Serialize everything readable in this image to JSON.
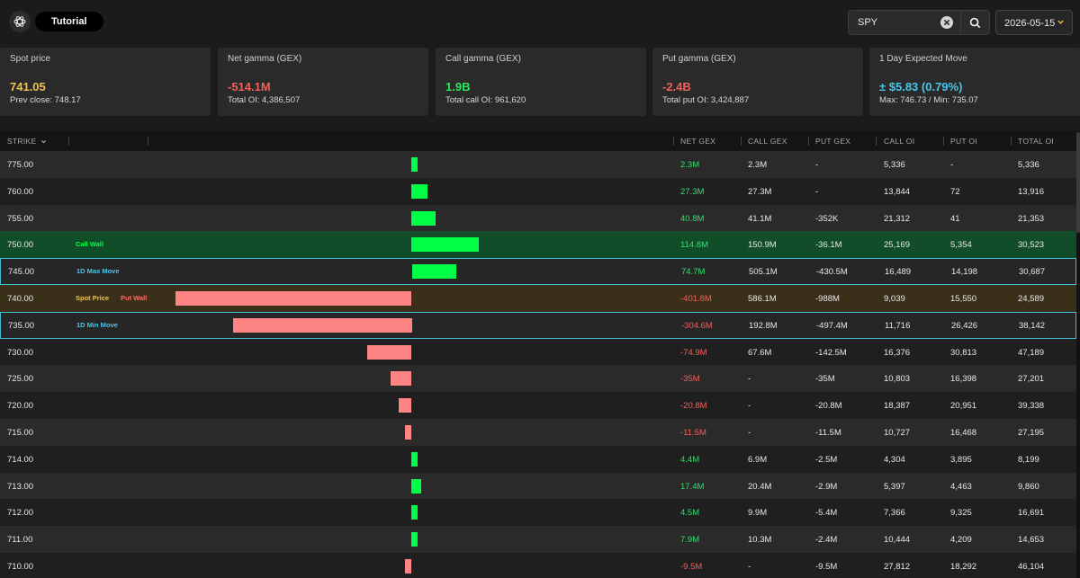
{
  "header": {
    "logo_icon": "openai-knot-icon",
    "tutorial_label": "Tutorial",
    "search": {
      "value": "SPY",
      "clear_icon": "close-circle-icon",
      "button_icon": "search-icon"
    },
    "date": {
      "value": "2026-05-15",
      "icon": "chevron-down-icon"
    }
  },
  "cards": [
    {
      "label": "Spot price",
      "value": "741.05",
      "sub": "Prev close: 748.17",
      "color": "#f2c14e"
    },
    {
      "label": "Net gamma (GEX)",
      "value": "-514.1M",
      "sub": "Total OI: 4,386,507",
      "color": "#f0605f"
    },
    {
      "label": "Call gamma (GEX)",
      "value": "1.9B",
      "sub": "Total call OI: 961,620",
      "color": "#2ce85a"
    },
    {
      "label": "Put gamma (GEX)",
      "value": "-2.4B",
      "sub": "Total put OI: 3,424,887",
      "color": "#f0605f"
    },
    {
      "label": "1 Day Expected Move",
      "value": "± $5.83 (0.79%)",
      "sub": "Max: 746.73 / Min: 735.07",
      "color": "#47c6ee"
    }
  ],
  "table": {
    "columns": {
      "strike": "STRIKE",
      "net_gex": "NET GEX",
      "call_gex": "CALL GEX",
      "put_gex": "PUT GEX",
      "call_oi": "CALL OI",
      "put_oi": "PUT OI",
      "total_oi": "TOTAL OI"
    },
    "sort_icon": "chevron-down-icon",
    "colors": {
      "positive": "#00ff46",
      "negative": "#ff8585",
      "positive_text": "#2fe06b",
      "negative_text": "#f0605f",
      "call_wall_row": "#124d2a",
      "put_wall_row": "#3a301a",
      "move_border": "#3fbcd1",
      "call_wall_tag": "#00ff46",
      "spot_tag": "#f2c14e",
      "put_wall_tag": "#ff6a6a",
      "move_tag": "#47c6ee"
    },
    "rows": [
      {
        "strike": "775.00",
        "net": "2.3M",
        "net_value": 2.3,
        "call": "2.3M",
        "put": "-",
        "call_oi": "5,336",
        "put_oi": "-",
        "total_oi": "5,336"
      },
      {
        "strike": "760.00",
        "net": "27.3M",
        "net_value": 27.3,
        "call": "27.3M",
        "put": "-",
        "call_oi": "13,844",
        "put_oi": "72",
        "total_oi": "13,916"
      },
      {
        "strike": "755.00",
        "net": "40.8M",
        "net_value": 40.8,
        "call": "41.1M",
        "put": "-352K",
        "call_oi": "21,312",
        "put_oi": "41",
        "total_oi": "21,353"
      },
      {
        "strike": "750.00",
        "net": "114.8M",
        "net_value": 114.8,
        "call": "150.9M",
        "put": "-36.1M",
        "call_oi": "25,169",
        "put_oi": "5,354",
        "total_oi": "30,523",
        "highlight": "call_wall",
        "tags": [
          {
            "text": "Call Wall",
            "kind": "call_wall"
          }
        ]
      },
      {
        "strike": "745.00",
        "net": "74.7M",
        "net_value": 74.7,
        "call": "505.1M",
        "put": "-430.5M",
        "call_oi": "16,489",
        "put_oi": "14,198",
        "total_oi": "30,687",
        "highlight": "move",
        "tags": [
          {
            "text": "1D Max Move",
            "kind": "move"
          }
        ]
      },
      {
        "strike": "740.00",
        "net": "-401.8M",
        "net_value": -401.8,
        "call": "586.1M",
        "put": "-988M",
        "call_oi": "9,039",
        "put_oi": "15,550",
        "total_oi": "24,589",
        "highlight": "put_wall",
        "tags": [
          {
            "text": "Spot Price",
            "kind": "spot"
          },
          {
            "text": "Put Wall",
            "kind": "put_wall"
          }
        ]
      },
      {
        "strike": "735.00",
        "net": "-304.6M",
        "net_value": -304.6,
        "call": "192.8M",
        "put": "-497.4M",
        "call_oi": "11,716",
        "put_oi": "26,426",
        "total_oi": "38,142",
        "highlight": "move",
        "tags": [
          {
            "text": "1D Min Move",
            "kind": "move"
          }
        ]
      },
      {
        "strike": "730.00",
        "net": "-74.9M",
        "net_value": -74.9,
        "call": "67.6M",
        "put": "-142.5M",
        "call_oi": "16,376",
        "put_oi": "30,813",
        "total_oi": "47,189"
      },
      {
        "strike": "725.00",
        "net": "-35M",
        "net_value": -35,
        "call": "-",
        "put": "-35M",
        "call_oi": "10,803",
        "put_oi": "16,398",
        "total_oi": "27,201"
      },
      {
        "strike": "720.00",
        "net": "-20.8M",
        "net_value": -20.8,
        "call": "-",
        "put": "-20.8M",
        "call_oi": "18,387",
        "put_oi": "20,951",
        "total_oi": "39,338"
      },
      {
        "strike": "715.00",
        "net": "-11.5M",
        "net_value": -11.5,
        "call": "-",
        "put": "-11.5M",
        "call_oi": "10,727",
        "put_oi": "16,468",
        "total_oi": "27,195"
      },
      {
        "strike": "714.00",
        "net": "4.4M",
        "net_value": 4.4,
        "call": "6.9M",
        "put": "-2.5M",
        "call_oi": "4,304",
        "put_oi": "3,895",
        "total_oi": "8,199"
      },
      {
        "strike": "713.00",
        "net": "17.4M",
        "net_value": 17.4,
        "call": "20.4M",
        "put": "-2.9M",
        "call_oi": "5,397",
        "put_oi": "4,463",
        "total_oi": "9,860"
      },
      {
        "strike": "712.00",
        "net": "4.5M",
        "net_value": 4.5,
        "call": "9.9M",
        "put": "-5.4M",
        "call_oi": "7,366",
        "put_oi": "9,325",
        "total_oi": "16,691"
      },
      {
        "strike": "711.00",
        "net": "7.9M",
        "net_value": 7.9,
        "call": "10.3M",
        "put": "-2.4M",
        "call_oi": "10,444",
        "put_oi": "4,209",
        "total_oi": "14,653"
      },
      {
        "strike": "710.00",
        "net": "-9.5M",
        "net_value": -9.5,
        "call": "-",
        "put": "-9.5M",
        "call_oi": "27,812",
        "put_oi": "18,292",
        "total_oi": "46,104"
      }
    ]
  }
}
